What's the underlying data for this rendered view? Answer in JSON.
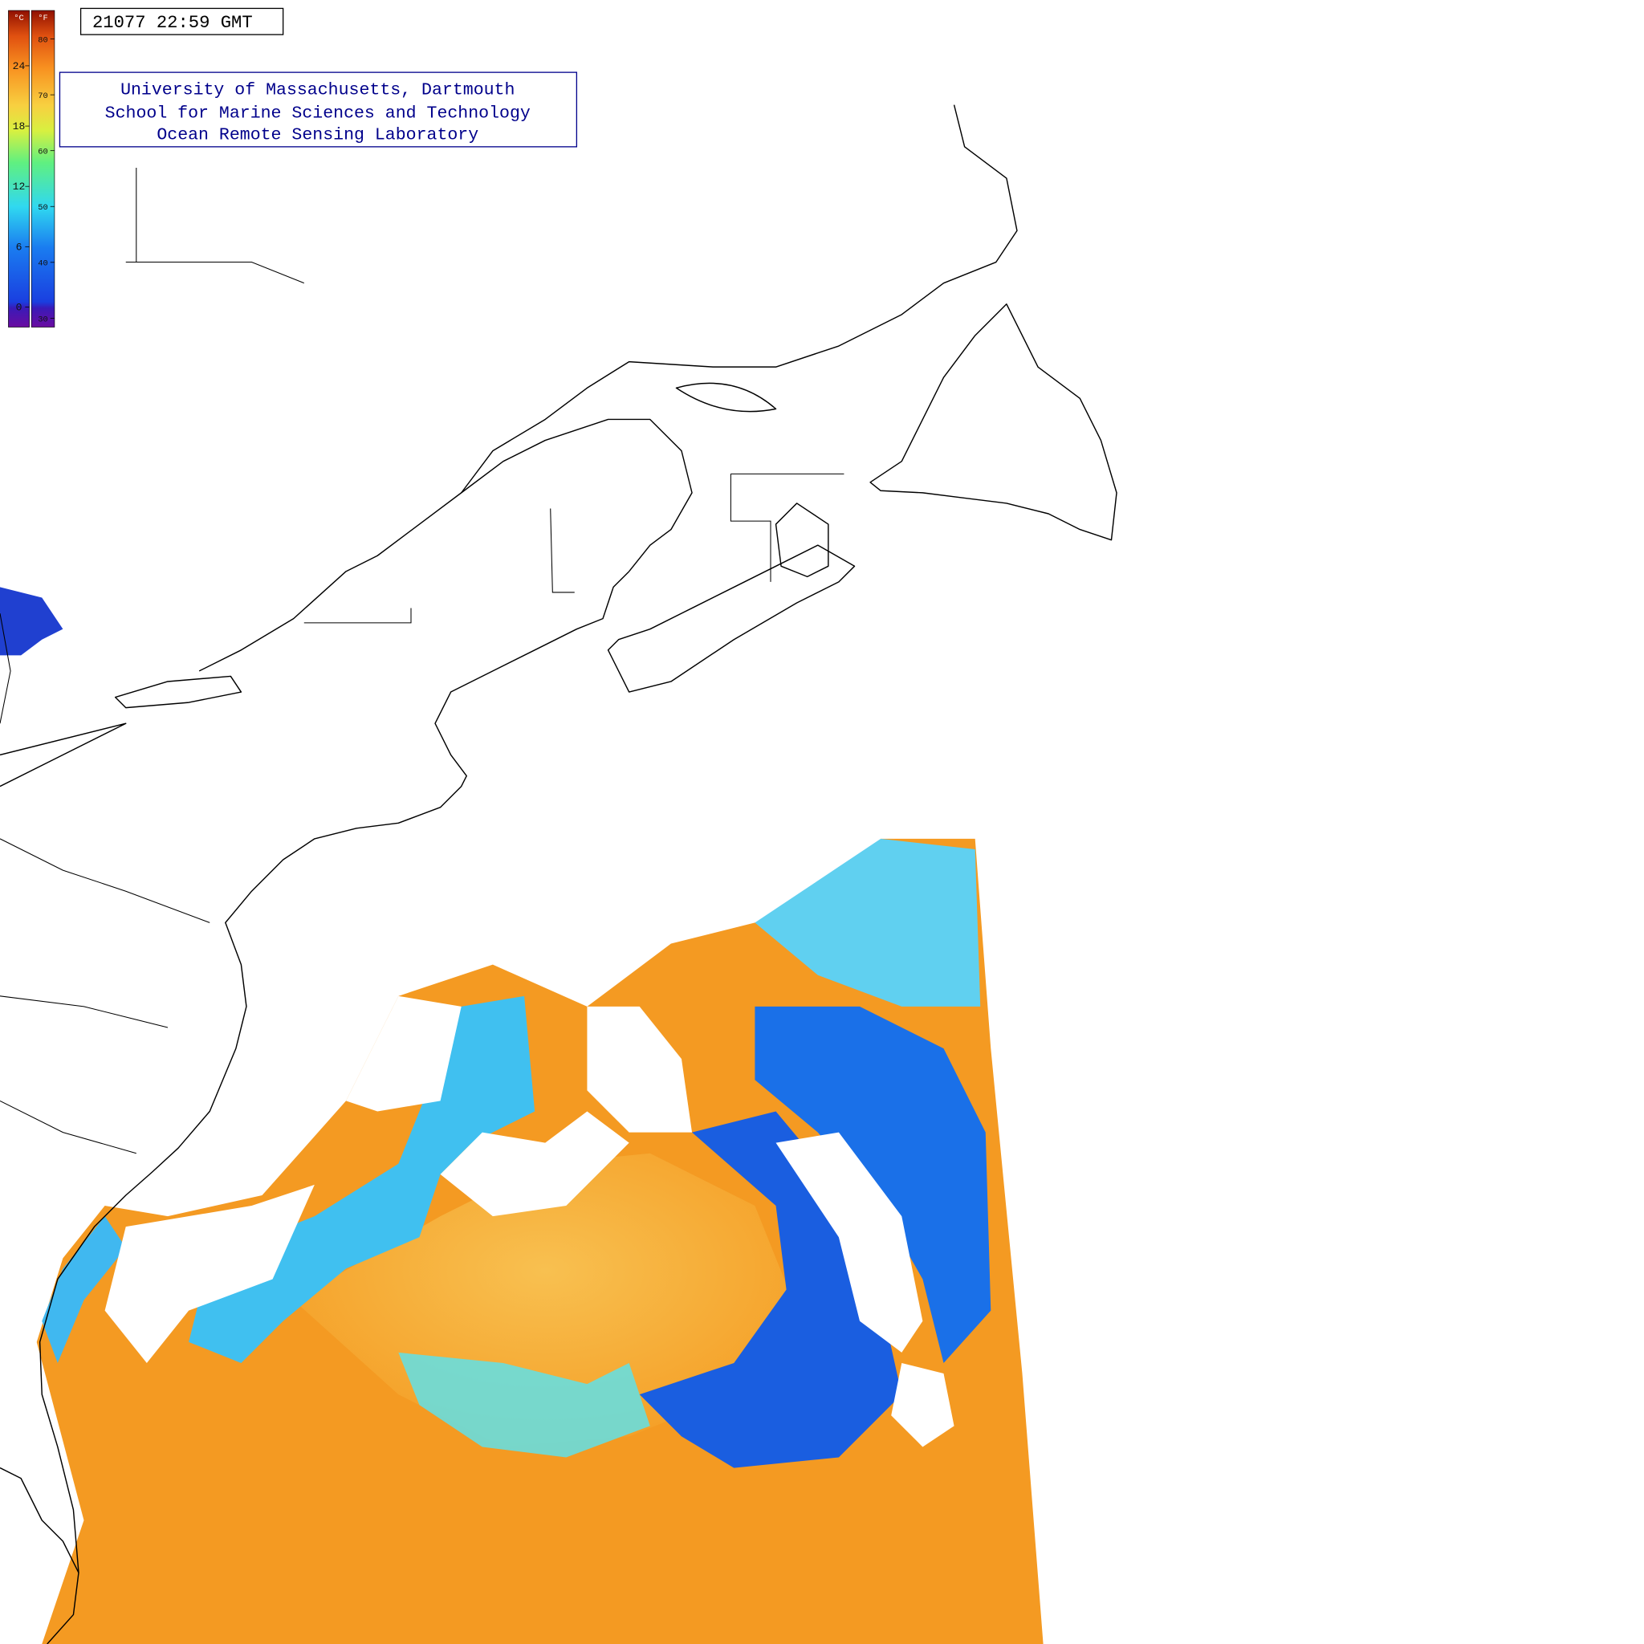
{
  "timestamp": "21077 22:59 GMT",
  "credit": [
    "University of Massachusetts, Dartmouth",
    "School for Marine Sciences and Technology",
    "Ocean Remote Sensing Laboratory"
  ],
  "colorbar": {
    "celsius": {
      "unit": "°C",
      "lim": [
        -2,
        29.5
      ],
      "ticks": [
        0,
        6,
        12,
        18,
        24
      ]
    },
    "fahrenheit": {
      "unit": "°F",
      "lim": [
        28.4,
        85.1
      ],
      "ticks": [
        30,
        40,
        50,
        60,
        70,
        80
      ]
    }
  }
}
